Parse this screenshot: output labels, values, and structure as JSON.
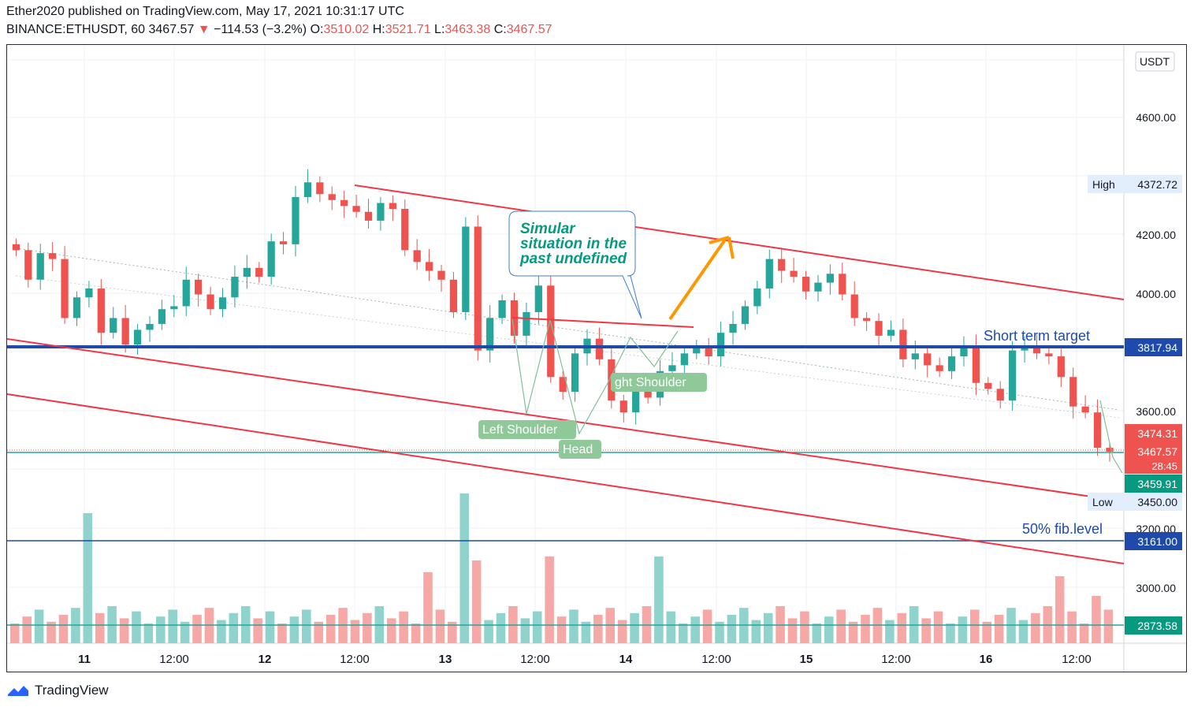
{
  "header": {
    "line1": "Ether2020 published on TradingView.com, May 17, 2021 10:31:17 UTC",
    "symbol": "BINANCE:ETHUSDT, 60",
    "last": "3467.57",
    "change": "−114.53 (−3.2%)",
    "o_label": "O:",
    "o": "3510.02",
    "h_label": "H:",
    "h": "3521.71",
    "l_label": "L:",
    "l": "3463.38",
    "c_label": "C:",
    "c": "3467.57"
  },
  "footer": {
    "brand": "TradingView"
  },
  "colors": {
    "up": "#26a69a",
    "down": "#ef5350",
    "channel": "#f23645",
    "level": "#1e4bab",
    "arrow": "#ff9800"
  },
  "chart_data": {
    "type": "candlestick",
    "currency": "USDT",
    "x_tick_labels": [
      "11",
      "12:00",
      "12",
      "12:00",
      "13",
      "12:00",
      "14",
      "12:00",
      "15",
      "12:00",
      "16",
      "12:00"
    ],
    "y_tick_labels": [
      "4600.00",
      "4200.00",
      "4000.00",
      "3600.00",
      "3200.00",
      "3000.00"
    ],
    "ylim": [
      2700,
      4800
    ],
    "price_labels": [
      {
        "text": "High",
        "value": "4372.72"
      },
      {
        "text": "",
        "value": "3817.94"
      },
      {
        "text": "",
        "value": "3474.31"
      },
      {
        "text": "",
        "value": "3467.57",
        "sub": "28:45"
      },
      {
        "text": "",
        "value": "3459.91"
      },
      {
        "text": "Low",
        "value": "3450.00"
      },
      {
        "text": "",
        "value": "3161.00"
      },
      {
        "text": "",
        "value": "2873.58"
      }
    ],
    "annotations": {
      "callout": "Simular situation in the past",
      "short_target": "Short term target",
      "fib": "50% fib.level",
      "left_shoulder": "Left Shoulder",
      "head": "Head",
      "right_shoulder": "ght Shoulder"
    },
    "horizontal_levels": [
      3817.94,
      3161.0,
      3467.57
    ],
    "candles_close": [
      4150,
      4050,
      4140,
      4120,
      3920,
      3990,
      4020,
      3870,
      3920,
      3830,
      3880,
      3900,
      3950,
      3960,
      4050,
      4000,
      3950,
      3990,
      4060,
      4090,
      4060,
      4180,
      4170,
      4330,
      4380,
      4340,
      4320,
      4300,
      4280,
      4250,
      4310,
      4290,
      4150,
      4110,
      4080,
      4050,
      3940,
      4230,
      3810,
      3920,
      3980,
      3860,
      3940,
      4030,
      3720,
      3670,
      3800,
      3850,
      3780,
      3640,
      3600,
      3700,
      3650,
      3740,
      3760,
      3800,
      3820,
      3790,
      3870,
      3900,
      3960,
      4020,
      4120,
      4080,
      4060,
      4010,
      4040,
      4070,
      4000,
      3920,
      3910,
      3860,
      3880,
      3780,
      3800,
      3760,
      3740,
      3790,
      3820,
      3700,
      3680,
      3640,
      3810,
      3820,
      3800,
      3790,
      3720,
      3620,
      3600,
      3480,
      3467
    ]
  }
}
